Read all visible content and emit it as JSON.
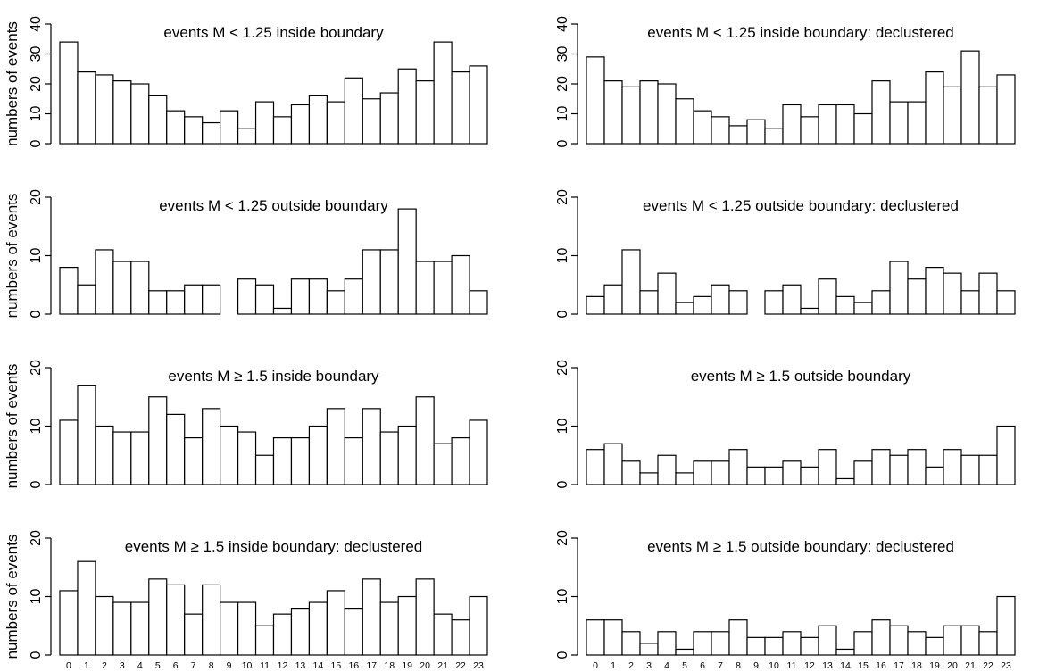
{
  "ylabel": "numbers of events",
  "chart_data": [
    {
      "type": "bar",
      "title": "events M < 1.25 inside boundary",
      "categories": [
        "0",
        "1",
        "2",
        "3",
        "4",
        "5",
        "6",
        "7",
        "8",
        "9",
        "10",
        "11",
        "12",
        "13",
        "14",
        "15",
        "16",
        "17",
        "18",
        "19",
        "20",
        "21",
        "22",
        "23"
      ],
      "values": [
        34,
        24,
        23,
        21,
        20,
        16,
        11,
        9,
        7,
        11,
        5,
        14,
        9,
        13,
        16,
        14,
        22,
        15,
        17,
        25,
        21,
        34,
        24,
        26
      ],
      "ylim": [
        0,
        40
      ],
      "yticks": [
        "0",
        "10",
        "20",
        "30",
        "40"
      ],
      "ylabel": "numbers of events",
      "xlabel": ""
    },
    {
      "type": "bar",
      "title": "events M < 1.25 inside boundary: declustered",
      "categories": [
        "0",
        "1",
        "2",
        "3",
        "4",
        "5",
        "6",
        "7",
        "8",
        "9",
        "10",
        "11",
        "12",
        "13",
        "14",
        "15",
        "16",
        "17",
        "18",
        "19",
        "20",
        "21",
        "22",
        "23"
      ],
      "values": [
        29,
        21,
        19,
        21,
        20,
        15,
        11,
        9,
        6,
        8,
        5,
        13,
        9,
        13,
        13,
        10,
        21,
        14,
        14,
        24,
        19,
        31,
        19,
        23
      ],
      "ylim": [
        0,
        40
      ],
      "yticks": [
        "0",
        "10",
        "20",
        "30",
        "40"
      ],
      "ylabel": "",
      "xlabel": ""
    },
    {
      "type": "bar",
      "title": "events M < 1.25 outside boundary",
      "categories": [
        "0",
        "1",
        "2",
        "3",
        "4",
        "5",
        "6",
        "7",
        "8",
        "9",
        "10",
        "11",
        "12",
        "13",
        "14",
        "15",
        "16",
        "17",
        "18",
        "19",
        "20",
        "21",
        "22",
        "23"
      ],
      "values": [
        8,
        5,
        11,
        9,
        9,
        4,
        4,
        5,
        5,
        0,
        6,
        5,
        1,
        6,
        6,
        4,
        6,
        11,
        11,
        18,
        9,
        9,
        10,
        4
      ],
      "ylim": [
        0,
        20
      ],
      "yticks": [
        "0",
        "10",
        "20"
      ],
      "ylabel": "numbers of events",
      "xlabel": ""
    },
    {
      "type": "bar",
      "title": "events M < 1.25 outside boundary: declustered",
      "categories": [
        "0",
        "1",
        "2",
        "3",
        "4",
        "5",
        "6",
        "7",
        "8",
        "9",
        "10",
        "11",
        "12",
        "13",
        "14",
        "15",
        "16",
        "17",
        "18",
        "19",
        "20",
        "21",
        "22",
        "23"
      ],
      "values": [
        3,
        5,
        11,
        4,
        7,
        2,
        3,
        5,
        4,
        0,
        4,
        5,
        1,
        6,
        3,
        2,
        4,
        9,
        6,
        8,
        7,
        4,
        7,
        4
      ],
      "ylim": [
        0,
        20
      ],
      "yticks": [
        "0",
        "10",
        "20"
      ],
      "ylabel": "",
      "xlabel": ""
    },
    {
      "type": "bar",
      "title": "events M ≥ 1.5 inside boundary",
      "categories": [
        "0",
        "1",
        "2",
        "3",
        "4",
        "5",
        "6",
        "7",
        "8",
        "9",
        "10",
        "11",
        "12",
        "13",
        "14",
        "15",
        "16",
        "17",
        "18",
        "19",
        "20",
        "21",
        "22",
        "23"
      ],
      "values": [
        11,
        17,
        10,
        9,
        9,
        15,
        12,
        8,
        13,
        10,
        9,
        5,
        8,
        8,
        10,
        13,
        8,
        13,
        9,
        10,
        15,
        7,
        8,
        11
      ],
      "ylim": [
        0,
        20
      ],
      "yticks": [
        "0",
        "10",
        "20"
      ],
      "ylabel": "numbers of events",
      "xlabel": ""
    },
    {
      "type": "bar",
      "title": "events M ≥ 1.5 outside boundary",
      "categories": [
        "0",
        "1",
        "2",
        "3",
        "4",
        "5",
        "6",
        "7",
        "8",
        "9",
        "10",
        "11",
        "12",
        "13",
        "14",
        "15",
        "16",
        "17",
        "18",
        "19",
        "20",
        "21",
        "22",
        "23"
      ],
      "values": [
        6,
        7,
        4,
        2,
        5,
        2,
        4,
        4,
        6,
        3,
        3,
        4,
        3,
        6,
        1,
        4,
        6,
        5,
        6,
        3,
        6,
        5,
        5,
        10
      ],
      "ylim": [
        0,
        20
      ],
      "yticks": [
        "0",
        "10",
        "20"
      ],
      "ylabel": "",
      "xlabel": ""
    },
    {
      "type": "bar",
      "title": "events M ≥ 1.5 inside boundary: declustered",
      "categories": [
        "0",
        "1",
        "2",
        "3",
        "4",
        "5",
        "6",
        "7",
        "8",
        "9",
        "10",
        "11",
        "12",
        "13",
        "14",
        "15",
        "16",
        "17",
        "18",
        "19",
        "20",
        "21",
        "22",
        "23"
      ],
      "values": [
        11,
        16,
        10,
        9,
        9,
        13,
        12,
        7,
        12,
        9,
        9,
        5,
        7,
        8,
        9,
        11,
        8,
        13,
        9,
        10,
        13,
        7,
        6,
        10
      ],
      "ylim": [
        0,
        20
      ],
      "yticks": [
        "0",
        "10",
        "20"
      ],
      "ylabel": "numbers of events",
      "xlabel": "",
      "show_xticks": true
    },
    {
      "type": "bar",
      "title": "events M ≥ 1.5 outside boundary: declustered",
      "categories": [
        "0",
        "1",
        "2",
        "3",
        "4",
        "5",
        "6",
        "7",
        "8",
        "9",
        "10",
        "11",
        "12",
        "13",
        "14",
        "15",
        "16",
        "17",
        "18",
        "19",
        "20",
        "21",
        "22",
        "23"
      ],
      "values": [
        6,
        6,
        4,
        2,
        4,
        1,
        4,
        4,
        6,
        3,
        3,
        4,
        3,
        5,
        1,
        4,
        6,
        5,
        4,
        3,
        5,
        5,
        4,
        10
      ],
      "ylim": [
        0,
        20
      ],
      "yticks": [
        "0",
        "10",
        "20"
      ],
      "ylabel": "",
      "xlabel": "",
      "show_xticks": true
    }
  ]
}
